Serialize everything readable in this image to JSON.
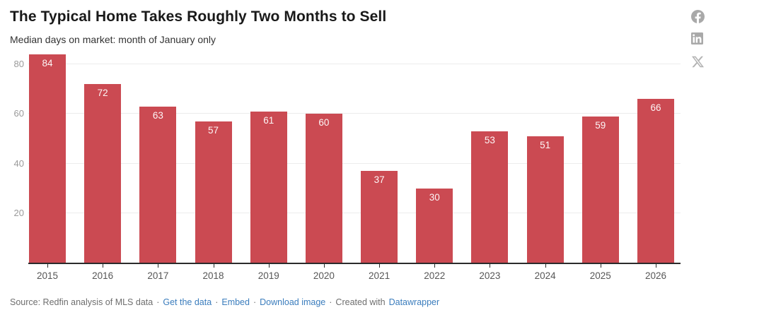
{
  "header": {
    "title": "The Typical Home Takes Roughly Two Months to Sell",
    "subtitle": "Median days on market: month of January only"
  },
  "social": {
    "icons": [
      "facebook",
      "linkedin",
      "x"
    ],
    "icon_color": "#a9a9a9"
  },
  "chart_data": {
    "type": "bar",
    "title": "The Typical Home Takes Roughly Two Months to Sell",
    "subtitle": "Median days on market: month of January only",
    "categories": [
      "2015",
      "2016",
      "2017",
      "2018",
      "2019",
      "2020",
      "2021",
      "2022",
      "2023",
      "2024",
      "2025",
      "2026"
    ],
    "values": [
      84,
      72,
      63,
      57,
      61,
      60,
      37,
      30,
      53,
      51,
      59,
      66
    ],
    "value_labels_shown": true,
    "xlabel": "",
    "ylabel": "",
    "ylim": [
      0,
      88
    ],
    "yticks": [
      20,
      40,
      60,
      80
    ],
    "grid": true,
    "legend": "none",
    "bar_color": "#cb4a52",
    "value_label_color": "#ffffff"
  },
  "footer": {
    "source_label": "Source: Redfin analysis of MLS data",
    "separator": "·",
    "links": {
      "get_data": "Get the data",
      "embed": "Embed",
      "download": "Download image"
    },
    "created_with": "Created with",
    "datawrapper": "Datawrapper"
  },
  "colors": {
    "accent": "#cb4a52",
    "link": "#3b7dbd",
    "axis": "#2b2b2b",
    "gridline": "#ececec",
    "y_tick_text": "#9a9a9a",
    "x_tick_text": "#575757"
  }
}
